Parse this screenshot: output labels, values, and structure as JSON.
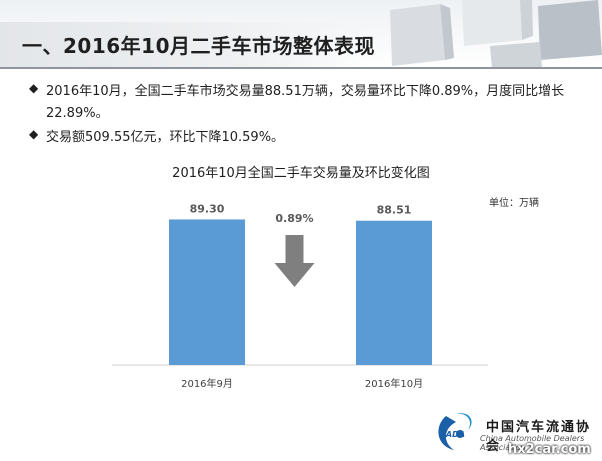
{
  "slide": {
    "title": "一、2016年10月二手车市场整体表现",
    "bullets": [
      {
        "mark": "◆",
        "text": "2016年10月，全国二手车市场交易量88.51万辆，交易量环比下降0.89%，月度同比增长22.89%。"
      },
      {
        "mark": "◆",
        "text": "交易额509.55亿元，环比下降10.59%。"
      }
    ]
  },
  "chart_data": {
    "type": "bar",
    "title": "2016年10月全国二手车交易量及环比变化图",
    "unit_label": "单位：万辆",
    "categories": [
      "2016年9月",
      "2016年10月"
    ],
    "values": [
      89.3,
      88.51
    ],
    "value_labels": [
      "89.30",
      "88.51"
    ],
    "change_label": "0.89%",
    "change_direction": "down",
    "ylim": [
      0,
      100
    ],
    "grid": false,
    "colors": {
      "bar": "#5b9bd5",
      "arrow": "#7f7f7f",
      "label": "#595959"
    }
  },
  "logo": {
    "cn": "中国汽车流通协会",
    "en": "China Automobile Dealers Association",
    "abbr": "CADA"
  },
  "watermark": "hx2car.com"
}
